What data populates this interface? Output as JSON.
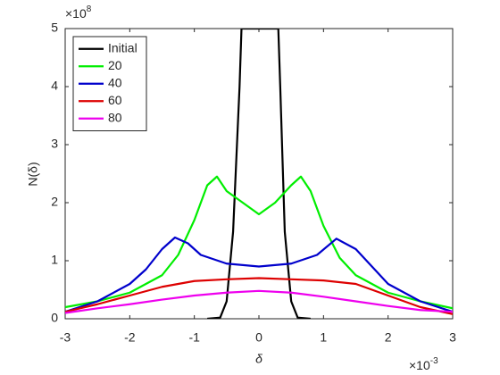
{
  "chart_data": {
    "type": "line",
    "xlabel": "δ",
    "ylabel": "N(δ)",
    "x_multiplier": {
      "base": "×10",
      "exponent": "-3"
    },
    "y_multiplier": {
      "base": "×10",
      "exponent": "8"
    },
    "xlim": [
      -3,
      3
    ],
    "ylim": [
      0,
      5
    ],
    "xticks": [
      -3,
      -2,
      -1,
      0,
      1,
      2,
      3
    ],
    "yticks": [
      0,
      1,
      2,
      3,
      4,
      5
    ],
    "legend": "upper left",
    "series": [
      {
        "name": "Initial",
        "color": "#000000",
        "x": [
          -0.8,
          -0.6,
          -0.5,
          -0.4,
          -0.3,
          -0.27,
          0.3,
          0.33,
          0.4,
          0.5,
          0.6,
          0.8
        ],
        "values": [
          0,
          0.02,
          0.3,
          1.5,
          4,
          5,
          5,
          4,
          1.5,
          0.3,
          0.02,
          0
        ]
      },
      {
        "name": "20",
        "color": "#00ee00",
        "x": [
          -3,
          -2.5,
          -2,
          -1.5,
          -1.25,
          -1,
          -0.8,
          -0.65,
          -0.5,
          -0.25,
          0,
          0.25,
          0.5,
          0.65,
          0.8,
          1,
          1.25,
          1.5,
          2,
          2.5,
          3
        ],
        "values": [
          0.2,
          0.3,
          0.45,
          0.75,
          1.1,
          1.7,
          2.3,
          2.45,
          2.2,
          2.0,
          1.8,
          2.0,
          2.3,
          2.45,
          2.2,
          1.6,
          1.05,
          0.75,
          0.45,
          0.3,
          0.18
        ]
      },
      {
        "name": "40",
        "color": "#0000cc",
        "x": [
          -3,
          -2.5,
          -2,
          -1.75,
          -1.5,
          -1.3,
          -1.1,
          -0.9,
          -0.5,
          0,
          0.5,
          0.9,
          1.2,
          1.5,
          1.75,
          2,
          2.5,
          3
        ],
        "values": [
          0.12,
          0.3,
          0.6,
          0.85,
          1.2,
          1.4,
          1.3,
          1.1,
          0.95,
          0.9,
          0.95,
          1.1,
          1.38,
          1.2,
          0.9,
          0.6,
          0.3,
          0.12
        ]
      },
      {
        "name": "60",
        "color": "#dd0000",
        "x": [
          -3,
          -2.5,
          -2,
          -1.5,
          -1,
          -0.5,
          0,
          0.5,
          1,
          1.5,
          2,
          2.5,
          3
        ],
        "values": [
          0.12,
          0.25,
          0.4,
          0.55,
          0.65,
          0.68,
          0.7,
          0.68,
          0.66,
          0.6,
          0.4,
          0.2,
          0.08
        ]
      },
      {
        "name": "80",
        "color": "#ee00ee",
        "x": [
          -3,
          -2.5,
          -2,
          -1.5,
          -1,
          -0.5,
          0,
          0.5,
          1,
          1.5,
          2,
          2.5,
          3
        ],
        "values": [
          0.1,
          0.18,
          0.25,
          0.33,
          0.4,
          0.45,
          0.48,
          0.45,
          0.38,
          0.3,
          0.22,
          0.15,
          0.12
        ]
      }
    ]
  }
}
